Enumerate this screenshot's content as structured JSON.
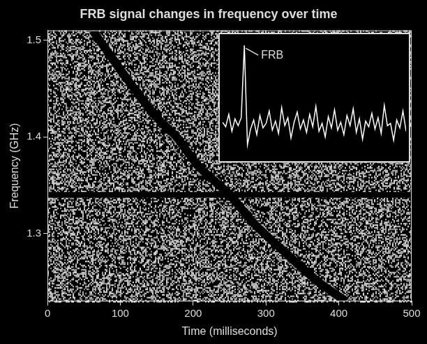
{
  "chart_data": [
    {
      "type": "line",
      "title": "FRB signal changes in frequency over time",
      "x_label": "Time (milliseconds)",
      "y_label": "Frequency (GHz)",
      "xlim": [
        0,
        500
      ],
      "xticks": [
        0,
        100,
        200,
        300,
        400,
        500
      ],
      "ylim": [
        1.23,
        1.51
      ],
      "yticks": [
        1.3,
        1.4,
        1.5
      ],
      "grid": false,
      "series": [
        {
          "color": "#ffffff",
          "x": [
            62,
            90,
            119,
            150,
            177,
            207,
            250,
            284,
            327,
            372,
            410
          ],
          "values": [
            1.51,
            1.48,
            1.45,
            1.42,
            1.4,
            1.37,
            1.34,
            1.31,
            1.28,
            1.25,
            1.23
          ]
        },
        {
          "color": "#ffffff",
          "x": [
            0,
            500
          ],
          "values": [
            1.34,
            1.34
          ]
        }
      ]
    },
    {
      "type": "line",
      "annotation": "FRB",
      "tick_labels": false,
      "color": "#ffffff",
      "ylim": [
        0,
        10.5
      ],
      "categories": [
        null,
        null,
        null,
        null,
        null,
        null,
        null,
        null,
        null,
        null,
        null,
        null,
        null,
        null,
        null,
        null,
        null,
        null,
        null,
        null,
        null,
        null,
        null,
        null,
        null,
        null,
        null,
        null,
        null,
        null,
        null,
        null,
        null,
        null,
        null,
        null,
        null,
        null,
        null,
        null,
        null,
        null,
        null,
        null,
        null,
        null,
        null,
        null,
        null,
        null,
        null,
        null,
        null,
        null,
        null,
        null,
        null,
        null,
        null,
        null
      ],
      "values": [
        3.2,
        2.8,
        3.9,
        2.4,
        3.5,
        2.9,
        3.6,
        10,
        1.2,
        2.6,
        3.4,
        2.1,
        3.8,
        2.7,
        3.1,
        4.2,
        2.5,
        3.3,
        2.2,
        4.5,
        2.9,
        3.6,
        1.8,
        3.2,
        4.1,
        2.6,
        3.4,
        2.3,
        3.9,
        2.8,
        4.6,
        2.4,
        3.1,
        1.9,
        3.7,
        2.7,
        4.3,
        2.5,
        3.2,
        2.1,
        3.8,
        2.9,
        4.4,
        2.3,
        3.5,
        1.7,
        3.3,
        2.8,
        4.0,
        2.6,
        3.6,
        2.2,
        4.7,
        2.9,
        3.1,
        1.6,
        3.4,
        2.7,
        4.2,
        2.4
      ]
    }
  ]
}
